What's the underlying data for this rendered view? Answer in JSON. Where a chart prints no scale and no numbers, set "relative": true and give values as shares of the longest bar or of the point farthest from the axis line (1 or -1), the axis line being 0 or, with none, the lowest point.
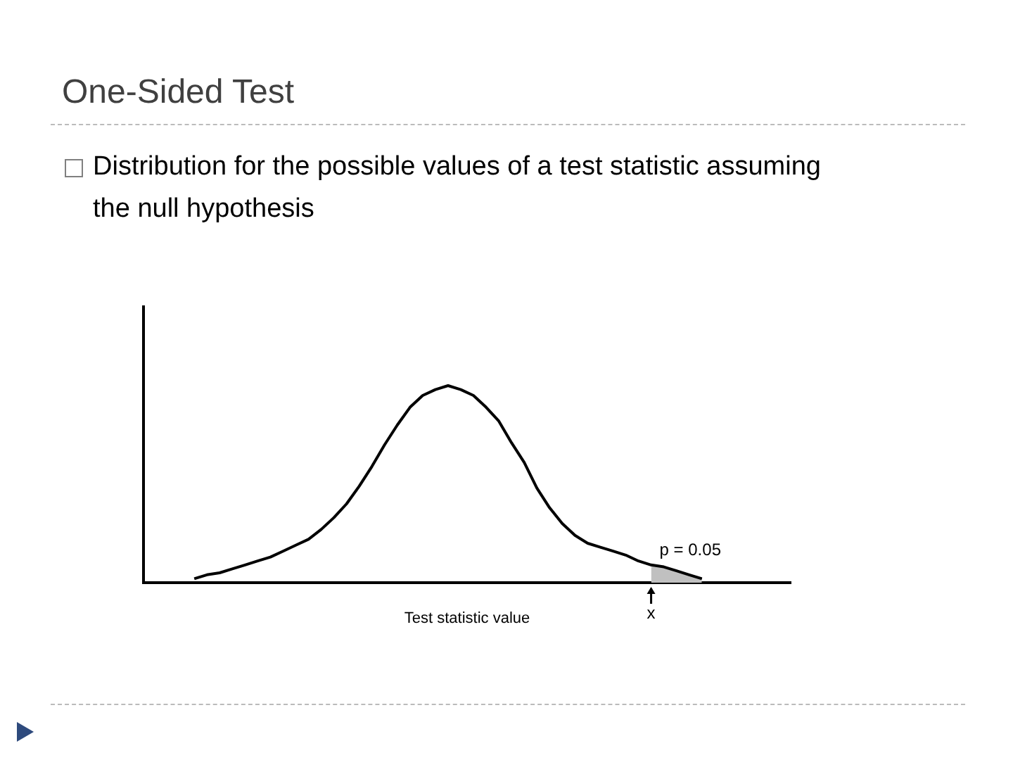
{
  "chart_data": {
    "type": "line",
    "title": "One-Sided Test",
    "subtitle": "Distribution for the possible values of a test statistic assuming the null hypothesis",
    "xlabel": "Test statistic value",
    "relative": true,
    "grid": false,
    "legend": false,
    "marker": "none",
    "categories": [
      null,
      null,
      null,
      null,
      null,
      null,
      null,
      null,
      null,
      null,
      null,
      null,
      null,
      null,
      null,
      null,
      null,
      null,
      null,
      null,
      null,
      null,
      null,
      null,
      null,
      null,
      null,
      null,
      null,
      null,
      null,
      null,
      null,
      null,
      null,
      null,
      null,
      null,
      null,
      null,
      null,
      null,
      null,
      null,
      null,
      null,
      null,
      null,
      null,
      null,
      null,
      null
    ],
    "series": [
      {
        "type": "line",
        "color": "#000000",
        "values": [
          null,
          null,
          null,
          null,
          0.02,
          0.04,
          0.05,
          0.07,
          0.09,
          0.11,
          0.13,
          0.16,
          0.19,
          0.22,
          0.27,
          0.33,
          0.4,
          0.49,
          0.59,
          0.7,
          0.8,
          0.89,
          0.95,
          0.98,
          1,
          0.98,
          0.95,
          0.89,
          0.82,
          0.71,
          0.61,
          0.48,
          0.38,
          0.3,
          0.24,
          0.2,
          0.18,
          0.16,
          0.14,
          0.11,
          0.09,
          0.08,
          0.06,
          0.04,
          0.02,
          null,
          null,
          null,
          null,
          null,
          null,
          null
        ]
      },
      {
        "type": "area",
        "color": "#c0c0c0",
        "values": [
          null,
          null,
          null,
          null,
          null,
          null,
          null,
          null,
          null,
          null,
          null,
          null,
          null,
          null,
          null,
          null,
          null,
          null,
          null,
          null,
          null,
          null,
          null,
          null,
          null,
          null,
          null,
          null,
          null,
          null,
          null,
          null,
          null,
          null,
          null,
          null,
          null,
          null,
          null,
          null,
          0.09,
          0.08,
          0.06,
          0.04,
          0.02,
          null,
          null,
          null,
          null,
          null,
          null,
          null
        ]
      }
    ],
    "annotations": [
      "p = 0.05",
      "x"
    ]
  }
}
